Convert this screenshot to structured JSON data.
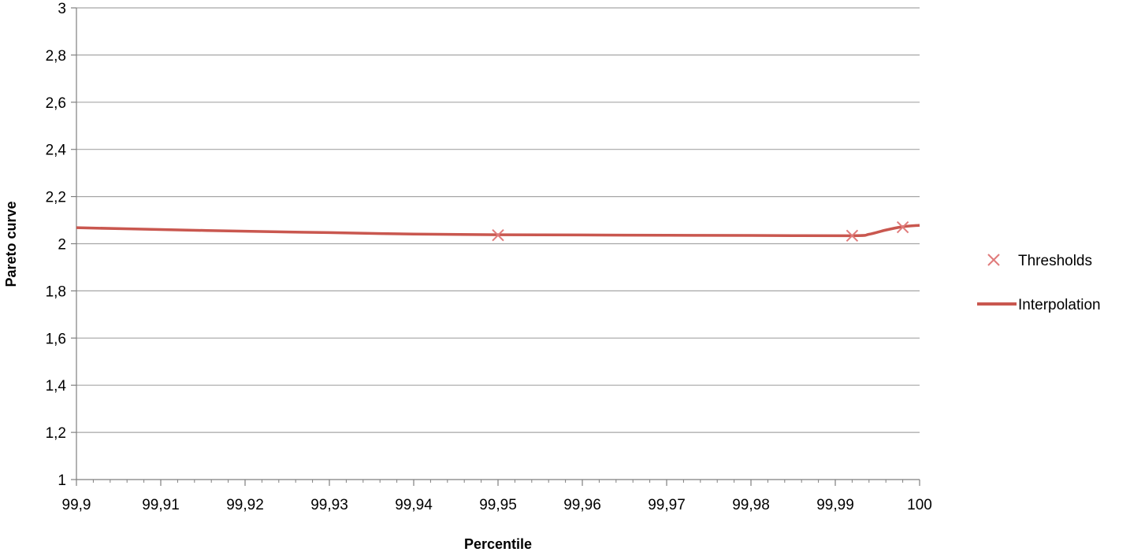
{
  "chart_data": {
    "type": "line",
    "title": "",
    "xlabel": "Percentile",
    "ylabel": "Pareto curve",
    "xlim": [
      99.9,
      100
    ],
    "ylim": [
      1,
      3
    ],
    "grid": true,
    "legend_position": "right",
    "x_ticks": [
      {
        "value": 99.9,
        "label": "99,9"
      },
      {
        "value": 99.91,
        "label": "99,91"
      },
      {
        "value": 99.92,
        "label": "99,92"
      },
      {
        "value": 99.93,
        "label": "99,93"
      },
      {
        "value": 99.94,
        "label": "99,94"
      },
      {
        "value": 99.95,
        "label": "99,95"
      },
      {
        "value": 99.96,
        "label": "99,96"
      },
      {
        "value": 99.97,
        "label": "99,97"
      },
      {
        "value": 99.98,
        "label": "99,98"
      },
      {
        "value": 99.99,
        "label": "99,99"
      },
      {
        "value": 100,
        "label": "100"
      }
    ],
    "y_ticks": [
      {
        "value": 1,
        "label": "1"
      },
      {
        "value": 1.2,
        "label": "1,2"
      },
      {
        "value": 1.4,
        "label": "1,4"
      },
      {
        "value": 1.6,
        "label": "1,6"
      },
      {
        "value": 1.8,
        "label": "1,8"
      },
      {
        "value": 2,
        "label": "2"
      },
      {
        "value": 2.2,
        "label": "2,2"
      },
      {
        "value": 2.4,
        "label": "2,4"
      },
      {
        "value": 2.6,
        "label": "2,6"
      },
      {
        "value": 2.8,
        "label": "2,8"
      },
      {
        "value": 3,
        "label": "3"
      }
    ],
    "series": [
      {
        "name": "Thresholds",
        "kind": "scatter",
        "marker": "x",
        "color": "#e07b7b",
        "points": [
          {
            "x": 99.95,
            "y": 2.036
          },
          {
            "x": 99.992,
            "y": 2.034
          },
          {
            "x": 99.998,
            "y": 2.07
          }
        ]
      },
      {
        "name": "Interpolation",
        "kind": "line",
        "color": "#c9574f",
        "points": [
          {
            "x": 99.9,
            "y": 2.068
          },
          {
            "x": 99.91,
            "y": 2.06
          },
          {
            "x": 99.92,
            "y": 2.053
          },
          {
            "x": 99.93,
            "y": 2.047
          },
          {
            "x": 99.94,
            "y": 2.041
          },
          {
            "x": 99.95,
            "y": 2.038
          },
          {
            "x": 99.96,
            "y": 2.037
          },
          {
            "x": 99.97,
            "y": 2.036
          },
          {
            "x": 99.98,
            "y": 2.035
          },
          {
            "x": 99.992,
            "y": 2.034
          },
          {
            "x": 99.994,
            "y": 2.04
          },
          {
            "x": 99.996,
            "y": 2.058
          },
          {
            "x": 99.998,
            "y": 2.072
          },
          {
            "x": 100,
            "y": 2.078
          }
        ]
      }
    ]
  }
}
